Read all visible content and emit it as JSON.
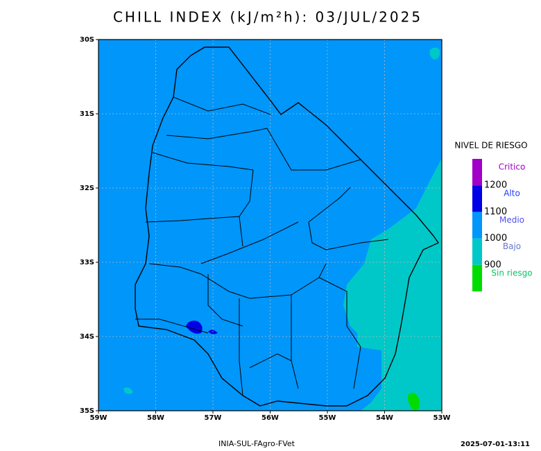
{
  "title": "CHILL INDEX (kJ/m²h): 03/JUL/2025",
  "map": {
    "lat_ticks": [
      "30S",
      "31S",
      "32S",
      "33S",
      "34S",
      "35S"
    ],
    "lon_ticks": [
      "59W",
      "58W",
      "57W",
      "56W",
      "55W",
      "54W",
      "53W"
    ]
  },
  "legend": {
    "title": "NIVEL DE RIESGO",
    "classes": [
      {
        "label": "Critico",
        "color": "#a000c8",
        "text_color": "#a000c8"
      },
      {
        "label": "Alto",
        "color": "#0000e6",
        "text_color": "#1e3cff"
      },
      {
        "label": "Medio",
        "color": "#0096fa",
        "text_color": "#5050f0"
      },
      {
        "label": "Bajo",
        "color": "#00c8c8",
        "text_color": "#6478c8"
      },
      {
        "label": "Sin riesgo",
        "color": "#00dc00",
        "text_color": "#00c864"
      }
    ],
    "thresholds": [
      "1200",
      "1100",
      "1000",
      "900"
    ]
  },
  "footer": {
    "source": "INIA-SUL-FAgro-FVet",
    "timestamp": "2025-07-01-13:11"
  }
}
